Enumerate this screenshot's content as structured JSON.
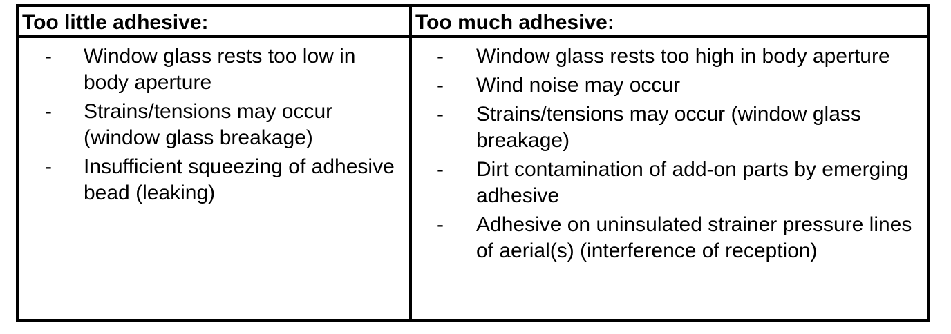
{
  "table": {
    "left": {
      "header": "Too little adhesive:",
      "items": [
        "Window glass rests too low in body aperture",
        "Strains/tensions may occur (window glass breakage)",
        "Insufficient squeezing of adhesive bead (leaking)"
      ]
    },
    "right": {
      "header": "Too much adhesive:",
      "items": [
        "Window glass rests too high in body aperture",
        "Wind noise may occur",
        "Strains/tensions may occur (window glass breakage)",
        "Dirt contamination of add-on parts by emerging adhesive",
        "Adhesive on uninsulated strainer pressure lines of aerial(s) (interference of reception)"
      ]
    },
    "bullet": "-"
  }
}
